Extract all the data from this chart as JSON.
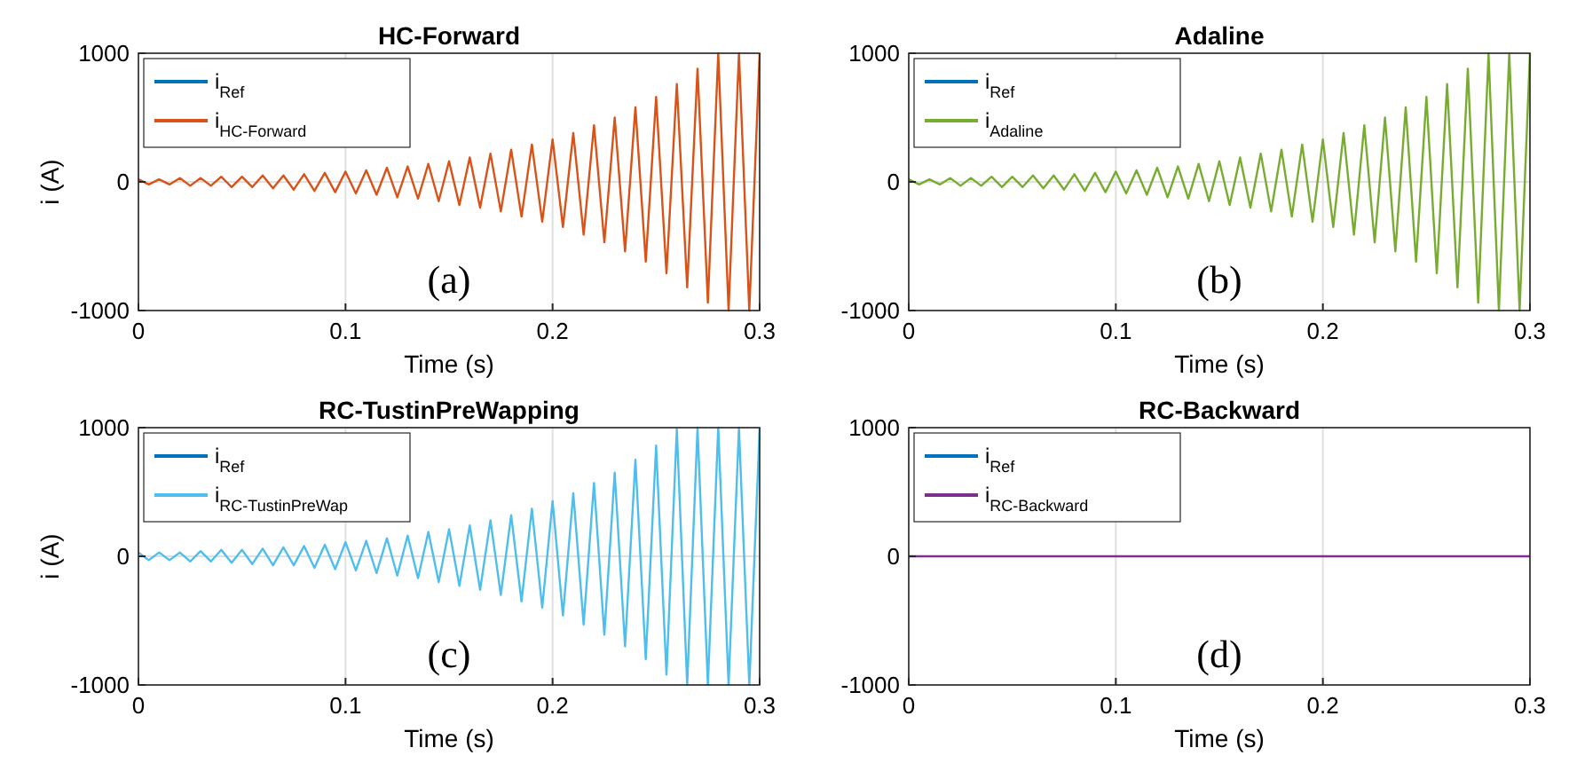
{
  "chart_data": [
    {
      "type": "line",
      "title": "HC-Forward",
      "xlabel": "Time (s)",
      "ylabel": "i (A)",
      "annotations": [
        "(a)"
      ],
      "xlim": [
        0,
        0.3
      ],
      "ylim": [
        -1000,
        1000
      ],
      "xticks": [
        0,
        0.1,
        0.2,
        0.3
      ],
      "yticks": [
        -1000,
        0,
        1000
      ],
      "grid": true,
      "legend": "top left",
      "x": [
        0,
        0.005,
        0.01,
        0.015,
        0.02,
        0.025,
        0.03,
        0.035,
        0.04,
        0.045,
        0.05,
        0.055,
        0.06,
        0.065,
        0.07,
        0.075,
        0.08,
        0.085,
        0.09,
        0.095,
        0.1,
        0.105,
        0.11,
        0.115,
        0.12,
        0.125,
        0.13,
        0.135,
        0.14,
        0.145,
        0.15,
        0.155,
        0.16,
        0.165,
        0.17,
        0.175,
        0.18,
        0.185,
        0.19,
        0.195,
        0.2,
        0.205,
        0.21,
        0.215,
        0.22,
        0.225,
        0.23,
        0.235,
        0.24,
        0.245,
        0.25,
        0.255,
        0.26,
        0.265,
        0.27,
        0.275,
        0.28,
        0.285,
        0.29,
        0.295,
        0.3
      ],
      "series": [
        {
          "name": "i$_{Ref}$",
          "color": "#0072bd",
          "values": [
            null,
            null,
            null,
            null,
            null,
            null,
            null,
            null,
            null,
            null,
            null,
            null,
            null,
            null,
            null,
            null,
            null,
            null,
            null,
            null,
            null,
            null,
            null,
            null,
            null,
            null,
            null,
            null,
            null,
            null,
            null,
            null,
            null,
            null,
            null,
            null,
            null,
            null,
            null,
            null,
            null,
            null,
            null,
            null,
            null,
            null,
            null,
            null,
            null,
            null,
            null,
            null,
            null,
            null,
            null,
            null,
            null,
            null,
            null,
            null,
            null
          ]
        },
        {
          "name": "i$_{HC-Forward}$",
          "color": "#d95319",
          "values": [
            20,
            -20,
            20,
            -20,
            30,
            -30,
            30,
            -30,
            40,
            -40,
            40,
            -40,
            50,
            -50,
            50,
            -60,
            60,
            -70,
            70,
            -80,
            80,
            -90,
            90,
            -100,
            110,
            -120,
            120,
            -130,
            140,
            -150,
            160,
            -180,
            190,
            -200,
            220,
            -230,
            250,
            -270,
            290,
            -310,
            330,
            -350,
            380,
            -410,
            440,
            -470,
            500,
            -540,
            580,
            -620,
            660,
            -710,
            760,
            -820,
            880,
            -940,
            1000,
            -1000,
            1000,
            -1000,
            1000
          ]
        }
      ]
    },
    {
      "type": "line",
      "title": "Adaline",
      "xlabel": "Time (s)",
      "annotations": [
        "(b)"
      ],
      "xlim": [
        0,
        0.3
      ],
      "ylim": [
        -1000,
        1000
      ],
      "xticks": [
        0,
        0.1,
        0.2,
        0.3
      ],
      "yticks": [
        -1000,
        0,
        1000
      ],
      "grid": true,
      "legend": "top left",
      "x": [
        0,
        0.005,
        0.01,
        0.015,
        0.02,
        0.025,
        0.03,
        0.035,
        0.04,
        0.045,
        0.05,
        0.055,
        0.06,
        0.065,
        0.07,
        0.075,
        0.08,
        0.085,
        0.09,
        0.095,
        0.1,
        0.105,
        0.11,
        0.115,
        0.12,
        0.125,
        0.13,
        0.135,
        0.14,
        0.145,
        0.15,
        0.155,
        0.16,
        0.165,
        0.17,
        0.175,
        0.18,
        0.185,
        0.19,
        0.195,
        0.2,
        0.205,
        0.21,
        0.215,
        0.22,
        0.225,
        0.23,
        0.235,
        0.24,
        0.245,
        0.25,
        0.255,
        0.26,
        0.265,
        0.27,
        0.275,
        0.28,
        0.285,
        0.29,
        0.295,
        0.3
      ],
      "series": [
        {
          "name": "i$_{Ref}$",
          "color": "#0072bd",
          "values": [
            null,
            null,
            null,
            null,
            null,
            null,
            null,
            null,
            null,
            null,
            null,
            null,
            null,
            null,
            null,
            null,
            null,
            null,
            null,
            null,
            null,
            null,
            null,
            null,
            null,
            null,
            null,
            null,
            null,
            null,
            null,
            null,
            null,
            null,
            null,
            null,
            null,
            null,
            null,
            null,
            null,
            null,
            null,
            null,
            null,
            null,
            null,
            null,
            null,
            null,
            null,
            null,
            null,
            null,
            null,
            null,
            null,
            null,
            null,
            null,
            null
          ]
        },
        {
          "name": "i$_{Adaline}$",
          "color": "#77ac30",
          "values": [
            20,
            -20,
            20,
            -20,
            30,
            -30,
            30,
            -30,
            40,
            -40,
            40,
            -40,
            50,
            -50,
            50,
            -60,
            60,
            -70,
            70,
            -80,
            80,
            -90,
            90,
            -100,
            110,
            -120,
            120,
            -130,
            140,
            -150,
            160,
            -180,
            190,
            -200,
            220,
            -230,
            250,
            -270,
            290,
            -310,
            330,
            -350,
            380,
            -410,
            440,
            -470,
            500,
            -540,
            580,
            -620,
            660,
            -710,
            760,
            -820,
            880,
            -940,
            1000,
            -1000,
            1000,
            -1000,
            1000
          ]
        }
      ]
    },
    {
      "type": "line",
      "title": "RC-TustinPreWapping",
      "xlabel": "Time (s)",
      "ylabel": "i (A)",
      "annotations": [
        "(c)"
      ],
      "xlim": [
        0,
        0.3
      ],
      "ylim": [
        -1000,
        1000
      ],
      "xticks": [
        0,
        0.1,
        0.2,
        0.3
      ],
      "yticks": [
        -1000,
        0,
        1000
      ],
      "grid": true,
      "legend": "top left",
      "x": [
        0,
        0.005,
        0.01,
        0.015,
        0.02,
        0.025,
        0.03,
        0.035,
        0.04,
        0.045,
        0.05,
        0.055,
        0.06,
        0.065,
        0.07,
        0.075,
        0.08,
        0.085,
        0.09,
        0.095,
        0.1,
        0.105,
        0.11,
        0.115,
        0.12,
        0.125,
        0.13,
        0.135,
        0.14,
        0.145,
        0.15,
        0.155,
        0.16,
        0.165,
        0.17,
        0.175,
        0.18,
        0.185,
        0.19,
        0.195,
        0.2,
        0.205,
        0.21,
        0.215,
        0.22,
        0.225,
        0.23,
        0.235,
        0.24,
        0.245,
        0.25,
        0.255,
        0.26,
        0.265,
        0.27,
        0.275,
        0.28,
        0.285,
        0.29,
        0.295,
        0.3
      ],
      "series": [
        {
          "name": "i$_{Ref}$",
          "color": "#0072bd",
          "values": [
            null,
            null,
            null,
            null,
            null,
            null,
            null,
            null,
            null,
            null,
            null,
            null,
            null,
            null,
            null,
            null,
            null,
            null,
            null,
            null,
            null,
            null,
            null,
            null,
            null,
            null,
            null,
            null,
            null,
            null,
            null,
            null,
            null,
            null,
            null,
            null,
            null,
            null,
            null,
            null,
            null,
            null,
            null,
            null,
            null,
            null,
            null,
            null,
            null,
            null,
            null,
            null,
            null,
            null,
            null,
            null,
            null,
            null,
            null,
            null,
            null
          ]
        },
        {
          "name": "i$_{RC-TustinPreWap}$",
          "color": "#4dbeee",
          "values": [
            30,
            -30,
            30,
            -30,
            30,
            -40,
            40,
            -40,
            50,
            -50,
            50,
            -60,
            60,
            -70,
            70,
            -70,
            80,
            -90,
            90,
            -100,
            110,
            -110,
            120,
            -130,
            140,
            -150,
            160,
            -170,
            190,
            -200,
            210,
            -230,
            240,
            -260,
            280,
            -300,
            320,
            -350,
            370,
            -400,
            430,
            -460,
            490,
            -530,
            570,
            -610,
            650,
            -700,
            750,
            -800,
            860,
            -920,
            990,
            -1000,
            1000,
            -1000,
            1000,
            -1000,
            1000,
            -1000,
            1000
          ]
        }
      ]
    },
    {
      "type": "line",
      "title": "RC-Backward",
      "xlabel": "Time (s)",
      "annotations": [
        "(d)"
      ],
      "xlim": [
        0,
        0.3
      ],
      "ylim": [
        -1000,
        1000
      ],
      "xticks": [
        0,
        0.1,
        0.2,
        0.3
      ],
      "yticks": [
        -1000,
        0,
        1000
      ],
      "grid": true,
      "legend": "top left",
      "series": [
        {
          "name": "i$_{Ref}$",
          "color": "#0072bd",
          "values": [
            null
          ]
        },
        {
          "name": "i$_{RC-Backward}$",
          "color": "#7e2f8e",
          "x": [
            0,
            0.3
          ],
          "values": [
            0,
            0
          ]
        }
      ]
    }
  ]
}
